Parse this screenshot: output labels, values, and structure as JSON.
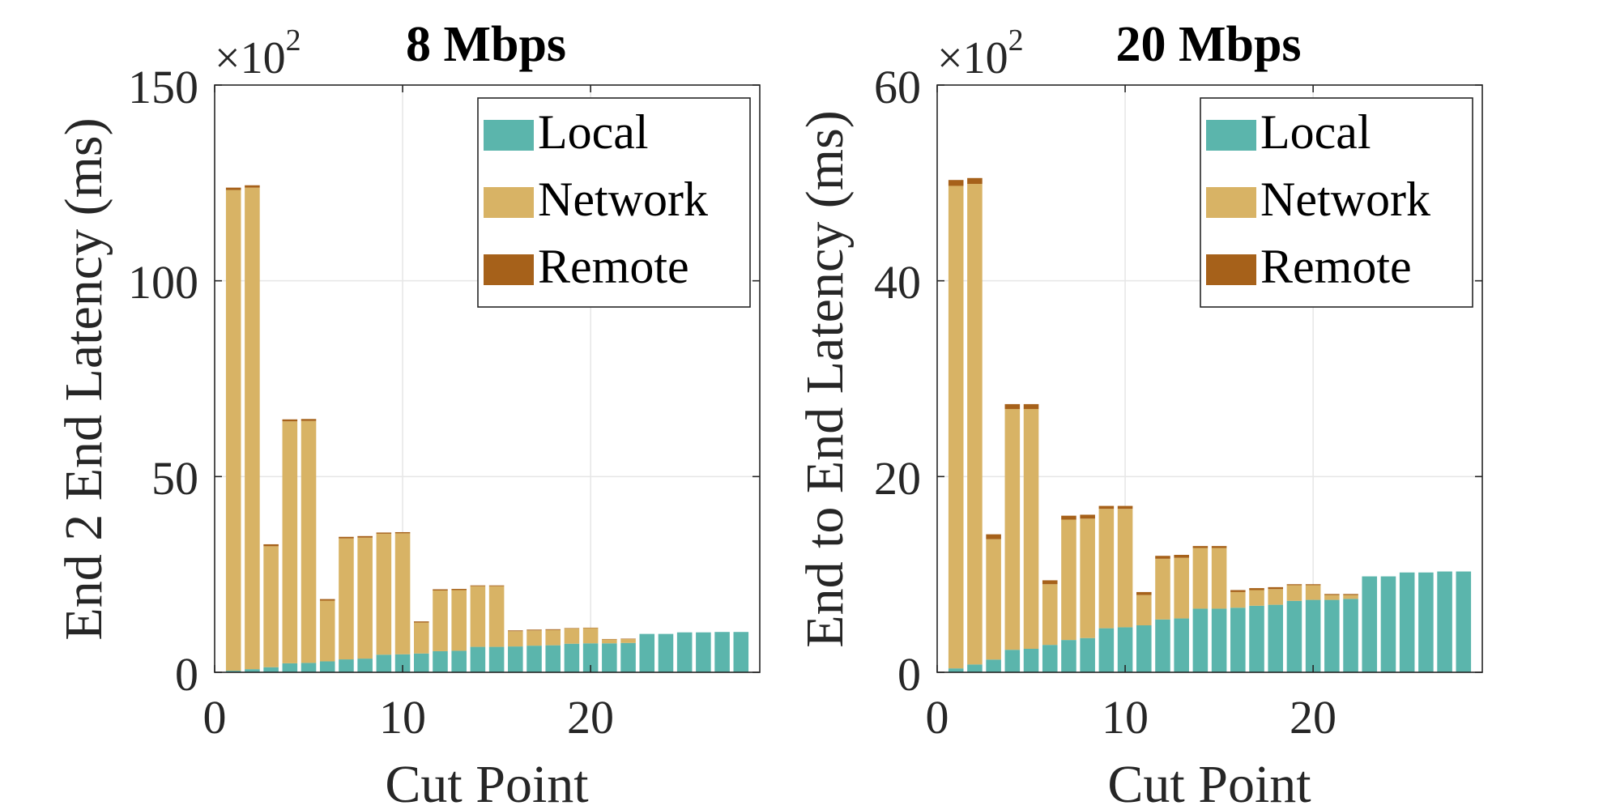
{
  "figure": {
    "colors": {
      "local": "#5bb5ac",
      "network": "#d8b365",
      "remote": "#a6611a",
      "axis": "#262626",
      "grid": "#e6e6e6"
    }
  },
  "chart_data": [
    {
      "type": "bar",
      "stacked": true,
      "title": "8 Mbps",
      "exponent_label": "×10",
      "exponent_power": "2",
      "xlabel": "Cut Point",
      "ylabel": "End 2 End Latency (ms)",
      "xlim": [
        0,
        29
      ],
      "ylim": [
        0,
        150
      ],
      "xticks": [
        "0",
        "10",
        "20"
      ],
      "yticks": [
        "0",
        "50",
        "100",
        "150"
      ],
      "grid": true,
      "legend": {
        "position": "top-right",
        "entries": [
          "Local",
          "Network",
          "Remote"
        ]
      },
      "x": [
        1,
        2,
        3,
        4,
        5,
        6,
        7,
        8,
        9,
        10,
        11,
        12,
        13,
        14,
        15,
        16,
        17,
        18,
        19,
        20,
        21,
        22,
        23,
        24,
        25,
        26,
        27,
        28
      ],
      "series": [
        {
          "name": "Local",
          "values": [
            0.4,
            0.8,
            1.3,
            2.3,
            2.4,
            2.8,
            3.3,
            3.5,
            4.5,
            4.6,
            4.8,
            5.4,
            5.5,
            6.5,
            6.5,
            6.6,
            6.8,
            6.9,
            7.3,
            7.4,
            7.4,
            7.5,
            9.8,
            9.8,
            10.2,
            10.2,
            10.3,
            10.3
          ]
        },
        {
          "name": "Network",
          "values": [
            122.8,
            123.0,
            30.9,
            61.8,
            61.8,
            15.5,
            30.9,
            30.9,
            30.9,
            30.9,
            7.9,
            15.5,
            15.5,
            15.5,
            15.5,
            3.9,
            3.9,
            3.9,
            3.9,
            3.9,
            1.0,
            1.0,
            0.0,
            0.0,
            0.0,
            0.0,
            0.0,
            0.0
          ]
        },
        {
          "name": "Remote",
          "values": [
            0.6,
            0.6,
            0.5,
            0.5,
            0.5,
            0.4,
            0.4,
            0.4,
            0.3,
            0.3,
            0.3,
            0.3,
            0.3,
            0.2,
            0.2,
            0.2,
            0.2,
            0.2,
            0.1,
            0.1,
            0.1,
            0.1,
            0.0,
            0.0,
            0.0,
            0.0,
            0.0,
            0.0
          ]
        }
      ]
    },
    {
      "type": "bar",
      "stacked": true,
      "title": "20 Mbps",
      "exponent_label": "×10",
      "exponent_power": "2",
      "xlabel": "Cut Point",
      "ylabel": "End to End Latency (ms)",
      "xlim": [
        0,
        29
      ],
      "ylim": [
        0,
        60
      ],
      "xticks": [
        "0",
        "10",
        "20"
      ],
      "yticks": [
        "0",
        "20",
        "40",
        "60"
      ],
      "grid": true,
      "legend": {
        "position": "top-right",
        "entries": [
          "Local",
          "Network",
          "Remote"
        ]
      },
      "x": [
        1,
        2,
        3,
        4,
        5,
        6,
        7,
        8,
        9,
        10,
        11,
        12,
        13,
        14,
        15,
        16,
        17,
        18,
        19,
        20,
        21,
        22,
        23,
        24,
        25,
        26,
        27,
        28
      ],
      "series": [
        {
          "name": "Local",
          "values": [
            0.4,
            0.8,
            1.3,
            2.3,
            2.4,
            2.8,
            3.3,
            3.5,
            4.5,
            4.6,
            4.8,
            5.4,
            5.5,
            6.5,
            6.5,
            6.6,
            6.8,
            6.9,
            7.3,
            7.4,
            7.4,
            7.5,
            9.8,
            9.8,
            10.2,
            10.2,
            10.3,
            10.3
          ]
        },
        {
          "name": "Network",
          "values": [
            49.3,
            49.1,
            12.3,
            24.6,
            24.5,
            6.2,
            12.3,
            12.2,
            12.2,
            12.1,
            3.1,
            6.2,
            6.2,
            6.2,
            6.2,
            1.6,
            1.6,
            1.6,
            1.6,
            1.5,
            0.5,
            0.4,
            0.0,
            0.0,
            0.0,
            0.0,
            0.0,
            0.0
          ]
        },
        {
          "name": "Remote",
          "values": [
            0.6,
            0.6,
            0.5,
            0.5,
            0.5,
            0.4,
            0.4,
            0.4,
            0.3,
            0.3,
            0.3,
            0.3,
            0.3,
            0.2,
            0.2,
            0.2,
            0.2,
            0.2,
            0.1,
            0.1,
            0.1,
            0.1,
            0.0,
            0.0,
            0.0,
            0.0,
            0.0,
            0.0
          ]
        }
      ]
    }
  ]
}
